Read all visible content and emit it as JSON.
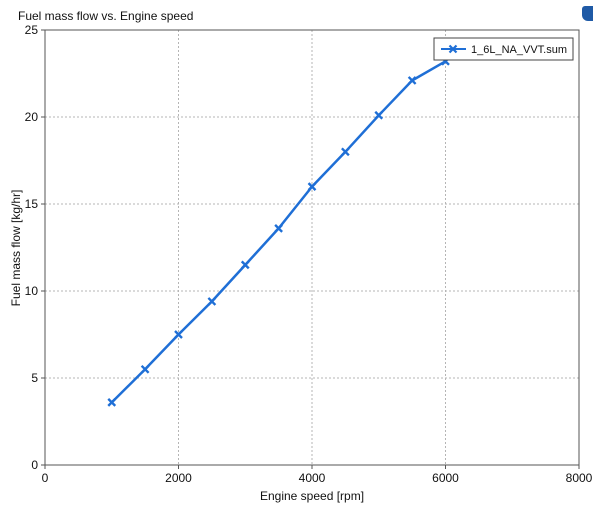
{
  "chart_data": {
    "type": "line",
    "title": "Fuel mass flow vs. Engine speed",
    "xlabel": "Engine speed  [rpm]",
    "ylabel": "Fuel mass flow  [kg/hr]",
    "xlim": [
      0,
      8000
    ],
    "ylim": [
      0,
      25
    ],
    "xticks": [
      0,
      2000,
      4000,
      6000,
      8000
    ],
    "yticks": [
      0,
      5,
      10,
      15,
      20,
      25
    ],
    "grid": true,
    "legend_position": "top-right",
    "series": [
      {
        "name": "1_6L_NA_VVT.sum",
        "color": "#1f6fd6",
        "marker": "x",
        "x": [
          1000,
          1500,
          2000,
          2500,
          3000,
          3500,
          4000,
          4500,
          5000,
          5500,
          6000
        ],
        "y": [
          3.6,
          5.5,
          7.5,
          9.4,
          11.5,
          13.6,
          16.0,
          18.0,
          20.1,
          22.1,
          23.2
        ]
      }
    ]
  },
  "window": {
    "corner_icon": "app-corner-icon",
    "accent_color": "#1f5aa6"
  }
}
